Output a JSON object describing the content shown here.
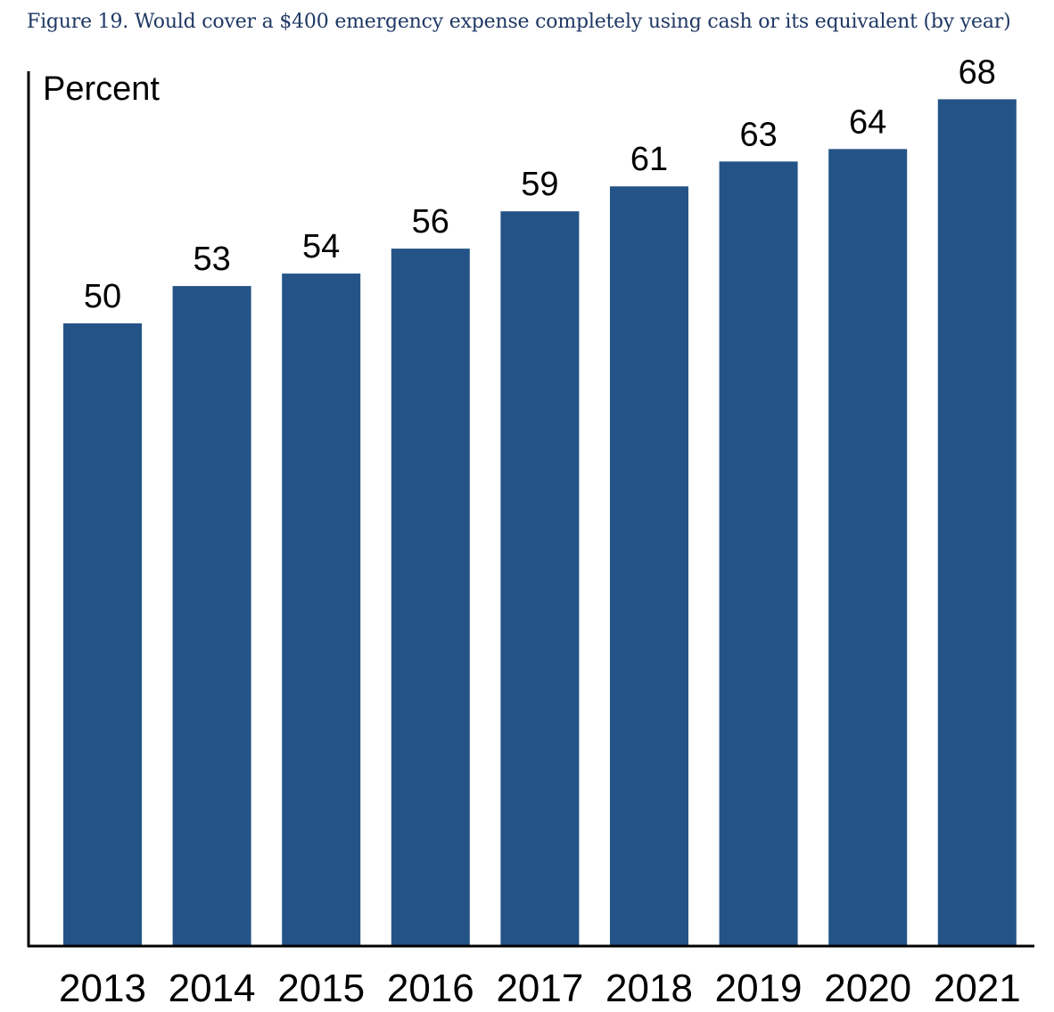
{
  "figure_title": "Figure 19. Would cover a $400 emergency expense completely using cash or its equivalent (by year)",
  "colors": {
    "bar": "#245487",
    "title": "#1f3864",
    "axis": "#000000"
  },
  "chart_data": {
    "type": "bar",
    "title": "Figure 19. Would cover a $400 emergency expense completely using cash or its equivalent (by year)",
    "ylabel": "Percent",
    "xlabel": "",
    "categories": [
      "2013",
      "2014",
      "2015",
      "2016",
      "2017",
      "2018",
      "2019",
      "2020",
      "2021"
    ],
    "values": [
      50,
      53,
      54,
      56,
      59,
      61,
      63,
      64,
      68
    ],
    "ylim": [
      0,
      70
    ],
    "grid": false,
    "legend": "none",
    "data_labels": true
  }
}
